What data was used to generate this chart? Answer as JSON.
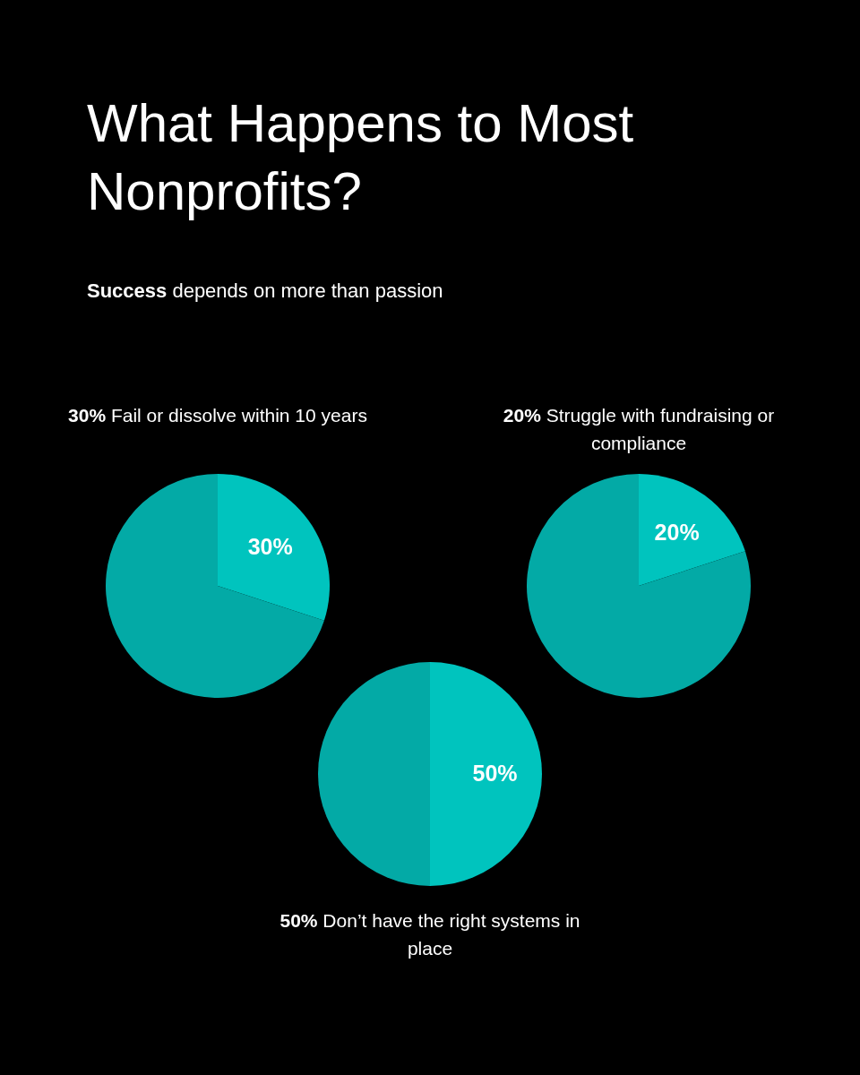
{
  "chart_data": [
    {
      "type": "other",
      "title": "What Happens to Most Nonprofits?",
      "subtitle": "Success depends on more than passion"
    },
    {
      "type": "pie",
      "title": "30% Fail or dissolve within 10 years",
      "categories": [
        null,
        null
      ],
      "values": [
        30,
        70
      ],
      "colors": [
        "#00c4be",
        "#03aaa6"
      ],
      "value_labels": [
        "30%",
        null
      ]
    },
    {
      "type": "pie",
      "title": "20% Struggle with fundraising or compliance",
      "categories": [
        null,
        null
      ],
      "values": [
        20,
        80
      ],
      "colors": [
        "#00c4be",
        "#03aaa6"
      ],
      "value_labels": [
        "20%",
        null
      ]
    },
    {
      "type": "pie",
      "title": "50% Don’t have the right systems in place",
      "categories": [
        null,
        null
      ],
      "values": [
        50,
        50
      ],
      "colors": [
        "#00c4be",
        "#03aaa6"
      ],
      "value_labels": [
        "50%",
        null
      ]
    }
  ]
}
